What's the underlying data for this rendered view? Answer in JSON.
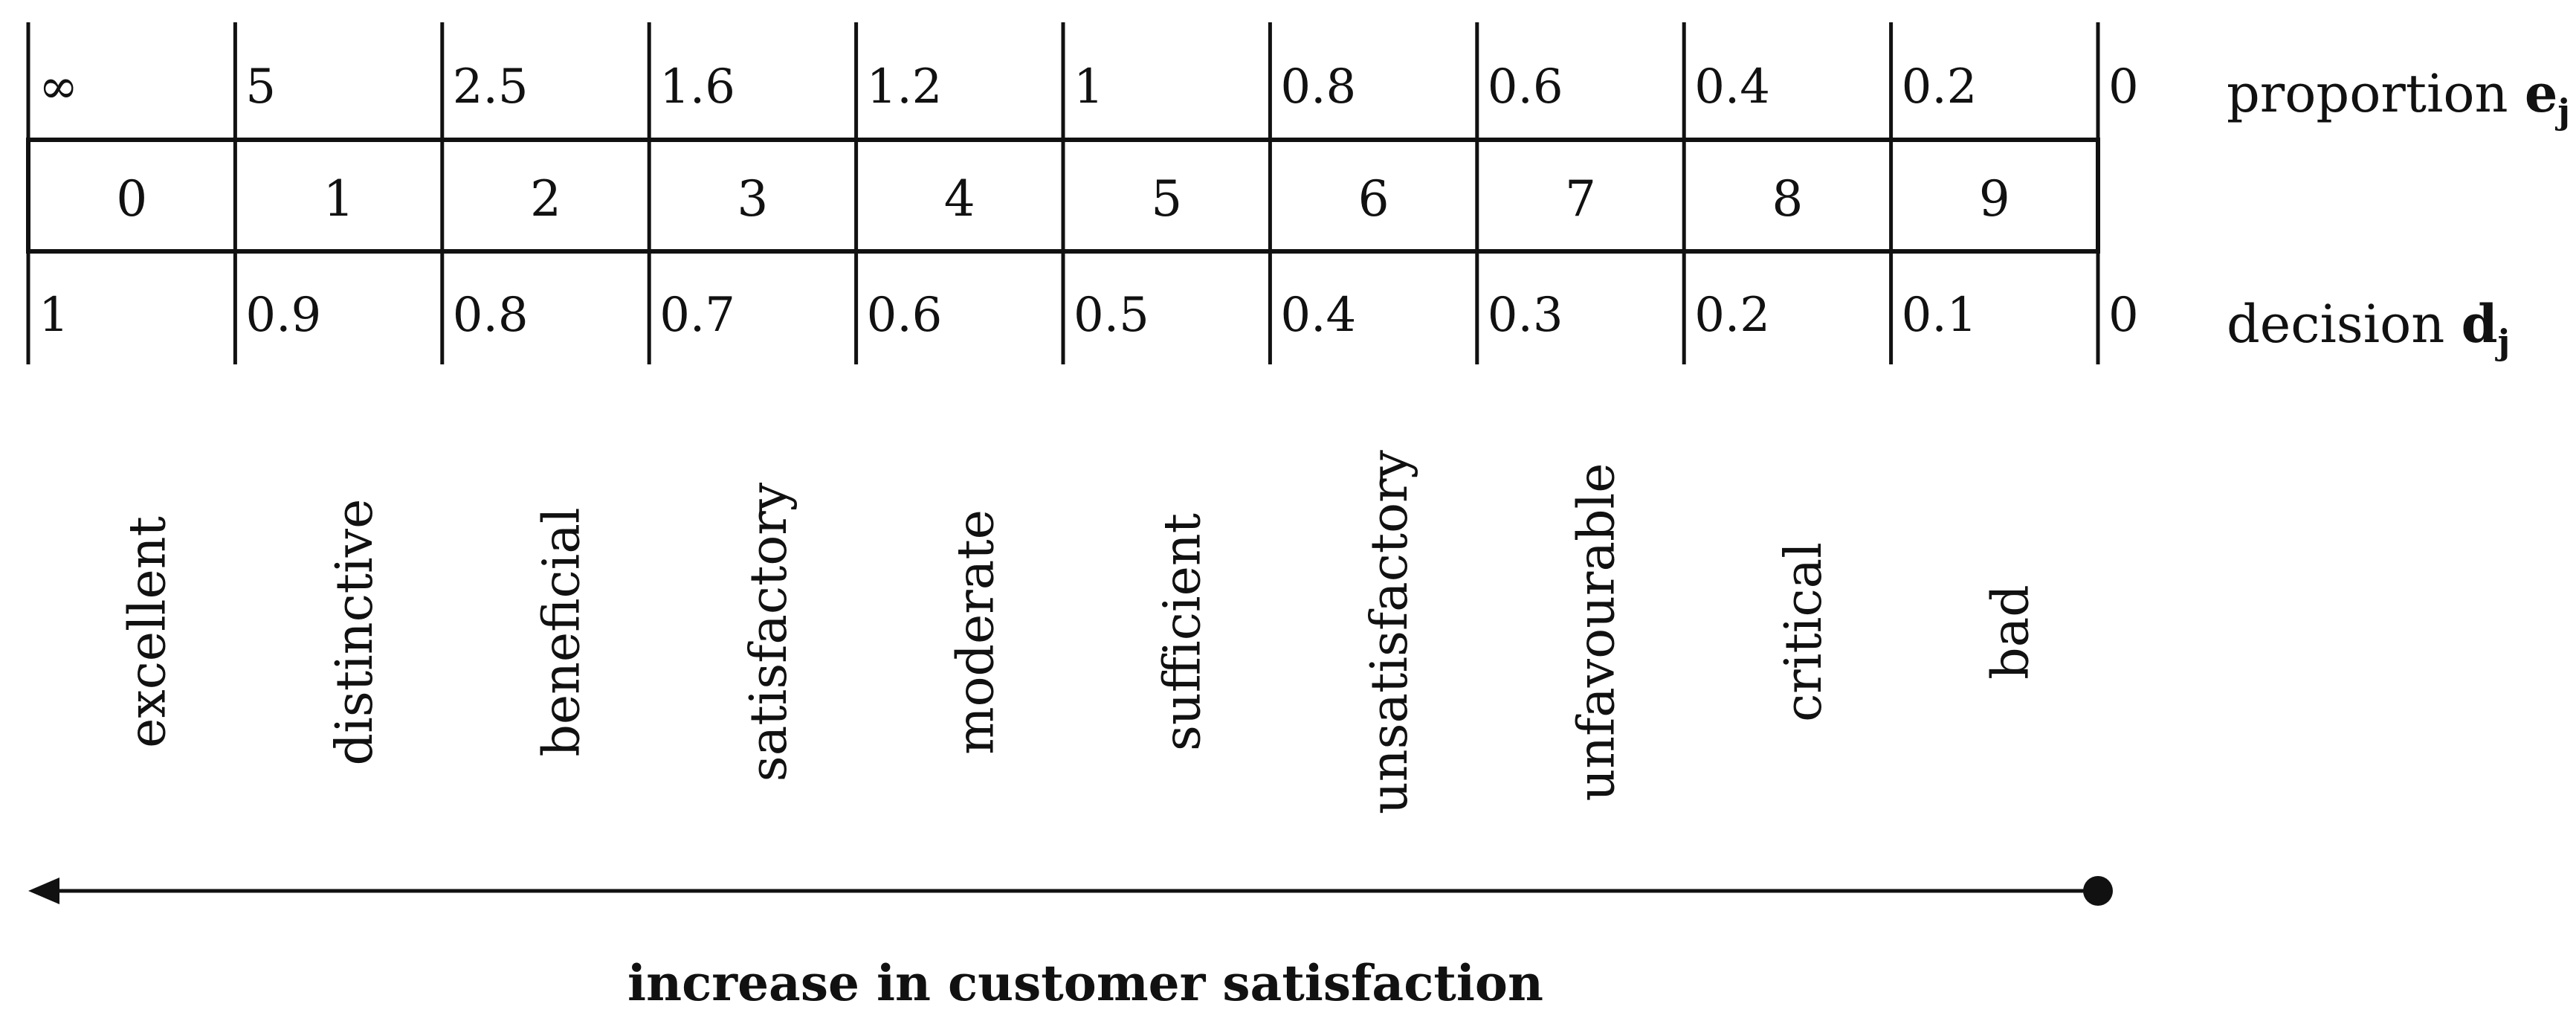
{
  "scale": {
    "proportion_values": [
      "∞",
      "5",
      "2.5",
      "1.6",
      "1.2",
      "1",
      "0.8",
      "0.6",
      "0.4",
      "0.2",
      "0"
    ],
    "indices": [
      "0",
      "1",
      "2",
      "3",
      "4",
      "5",
      "6",
      "7",
      "8",
      "9"
    ],
    "decision_values": [
      "1",
      "0.9",
      "0.8",
      "0.7",
      "0.6",
      "0.5",
      "0.4",
      "0.3",
      "0.2",
      "0.1",
      "0"
    ],
    "proportion_label": {
      "text": "proportion ",
      "symbol": "e",
      "subscript": "j"
    },
    "decision_label": {
      "text": "decision ",
      "symbol": "d",
      "subscript": "j"
    }
  },
  "categories": [
    "excellent",
    "distinctive",
    "beneficial",
    "satisfactory",
    "moderate",
    "sufficient",
    "unsatisfactory",
    "unfavourable",
    "critical",
    "bad"
  ],
  "arrow": {
    "caption": "increase in customer satisfaction"
  }
}
